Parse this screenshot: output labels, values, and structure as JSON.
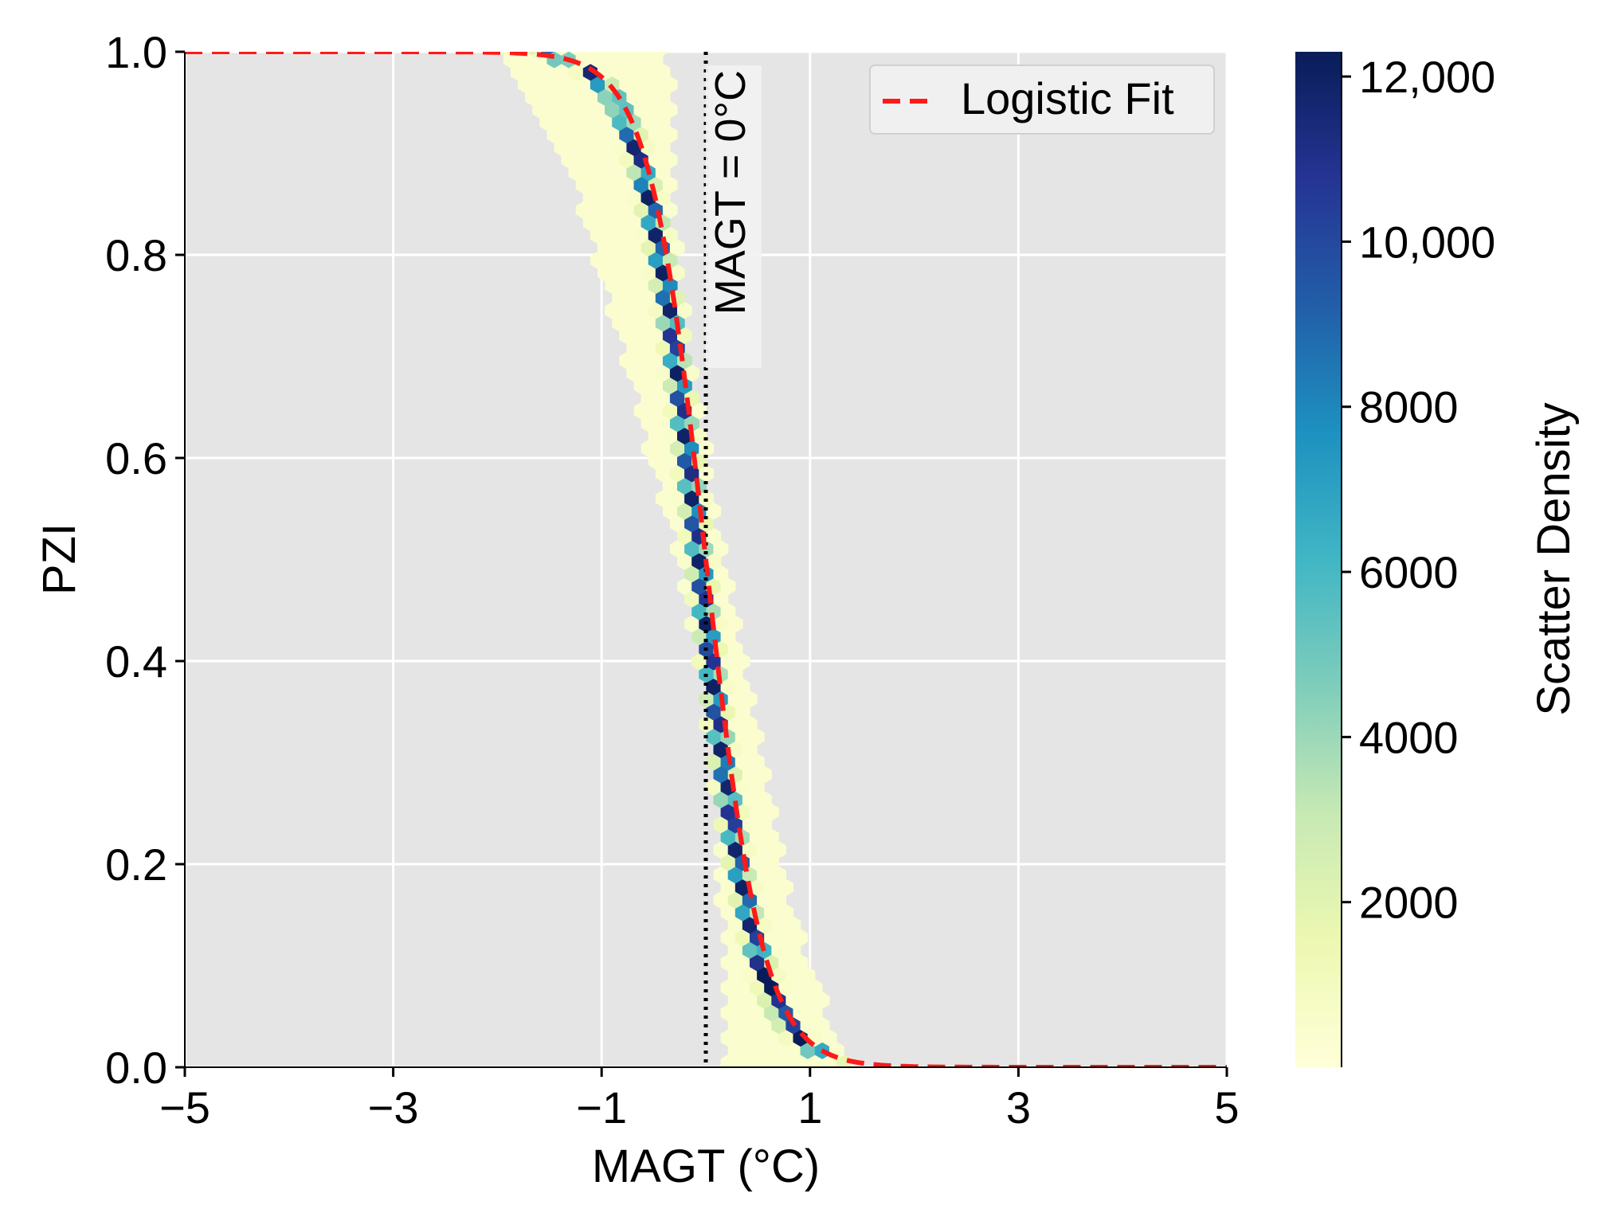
{
  "chart_data": {
    "type": "hexbin",
    "title": "",
    "xlabel": "MAGT (°C)",
    "ylabel": "PZI",
    "xlim": [
      -5,
      5
    ],
    "ylim": [
      0.0,
      1.0
    ],
    "xticks": [
      -5,
      -3,
      -1,
      1,
      3,
      5
    ],
    "xtick_labels": [
      "−5",
      "−3",
      "−1",
      "1",
      "3",
      "5"
    ],
    "yticks": [
      0.0,
      0.2,
      0.4,
      0.6,
      0.8,
      1.0
    ],
    "ytick_labels": [
      "0.0",
      "0.2",
      "0.4",
      "0.6",
      "0.8",
      "1.0"
    ],
    "grid": true,
    "background": "#e5e5e5",
    "legend": {
      "position": "top-right",
      "entries": [
        {
          "label": "Logistic Fit",
          "style": "dashed",
          "color": "#ff1a1a"
        }
      ]
    },
    "logistic_fit": {
      "midpoint": 0.0,
      "slope": 3.67,
      "color": "#ff1a1a"
    },
    "reference_line": {
      "x": 0.0,
      "label": "MAGT = 0°C",
      "style": "dotted",
      "color": "#000000"
    },
    "colorbar": {
      "label": "Scatter Density",
      "min": 0,
      "max": 12300,
      "ticks": [
        2000,
        4000,
        6000,
        8000,
        10000,
        12000
      ],
      "tick_labels": [
        "2000",
        "4000",
        "6000",
        "8000",
        "10,000",
        "12,000"
      ],
      "colormap": "YlGnBu",
      "stops": [
        "#ffffd9",
        "#edf8b1",
        "#c7e9b4",
        "#7fcdbb",
        "#41b6c4",
        "#1d91c0",
        "#225ea8",
        "#253494",
        "#081d58"
      ]
    },
    "hexbin_band": {
      "description_points": [
        {
          "pzi": 1.0,
          "magt_left": -1.95,
          "magt_right": -0.35
        },
        {
          "pzi": 0.85,
          "magt_left": -1.2,
          "magt_right": -0.3
        },
        {
          "pzi": 0.7,
          "magt_left": -0.8,
          "magt_right": -0.15
        },
        {
          "pzi": 0.5,
          "magt_left": -0.25,
          "magt_right": 0.2
        },
        {
          "pzi": 0.3,
          "magt_left": 0.05,
          "magt_right": 0.55
        },
        {
          "pzi": 0.15,
          "magt_left": 0.15,
          "magt_right": 0.85
        },
        {
          "pzi": 0.0,
          "magt_left": 0.2,
          "magt_right": 1.35
        }
      ]
    }
  }
}
